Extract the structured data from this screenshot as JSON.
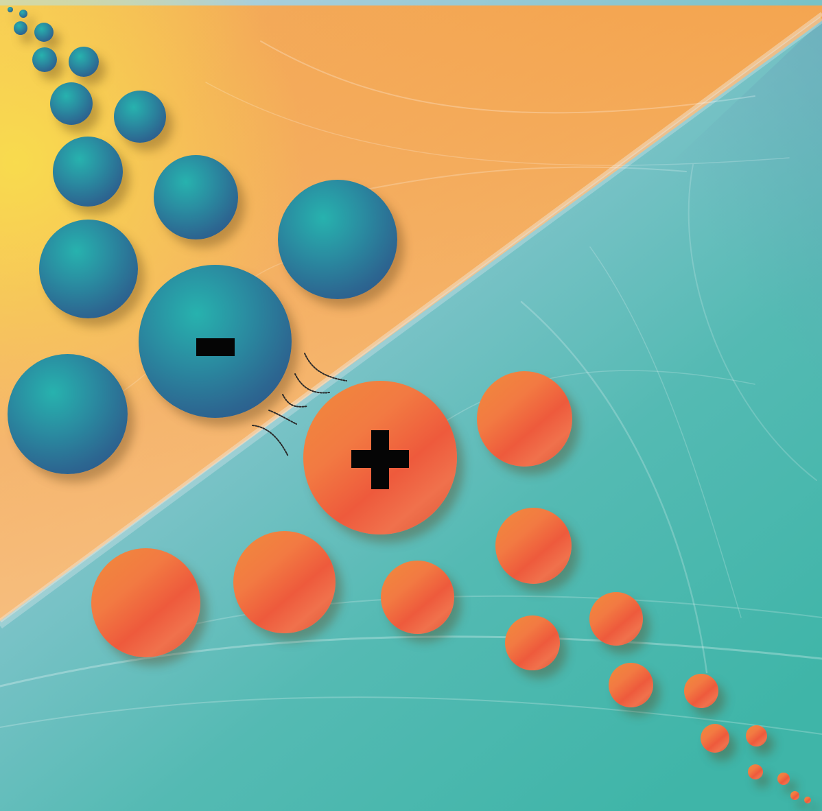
{
  "scene": {
    "description_colors": {
      "top_left_orange": "#f3a04a",
      "bottom_right_teal": "#4bbdb1",
      "divider_pale_blue": "#b8d6e0",
      "negative_sphere": "#2a6f94",
      "positive_sphere": "#ef6a44",
      "sign": "#050505"
    },
    "negative_charge": {
      "icon": "minus-icon",
      "symbol": "−"
    },
    "positive_charge": {
      "icon": "plus-icon",
      "symbol": "+"
    }
  }
}
